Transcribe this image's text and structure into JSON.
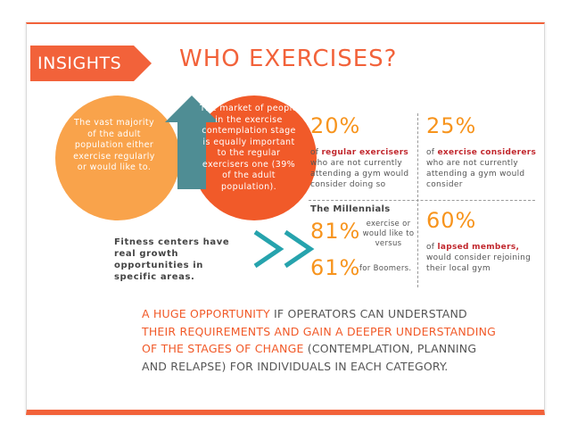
{
  "header": {
    "tag": "INSIGHTS",
    "title": "WHO EXERCISES?"
  },
  "circles": {
    "orange_text": "The vast majority of the adult population either exercise regularly or would like to.",
    "red_text": "The market of people in the exercise contemplation stage is equally important to the regular exercisers one (39% of the adult population)."
  },
  "stats": {
    "regular": {
      "pct": "20%",
      "bold": "regular exercisers",
      "pre": "of ",
      "post": " who are not currently attending a gym would consider doing so"
    },
    "considerers": {
      "pct": "25%",
      "pre": "of ",
      "bold": "exercise considerers",
      "post": " who are not currently attending a gym would consider"
    },
    "millennials": {
      "label": "The Millennials",
      "pct1": "81%",
      "desc1": "exercise or would like to versus",
      "pct2": "61%",
      "desc2": "for Boomers."
    },
    "lapsed": {
      "pct": "60%",
      "pre": "of ",
      "bold": "lapsed members,",
      "post": " would consider rejoining their local gym"
    }
  },
  "fitness_text": "Fitness centers have real growth opportunities in specific areas.",
  "bottom": {
    "p1": "A HUGE OPPORTUNITY",
    "p2": " IF OPERATORS CAN UNDERSTAND ",
    "p3": "THEIR REQUIREMENTS AND GAIN A DEEPER UNDERSTANDING OF THE STAGES OF CHANGE",
    "p4": " (CONTEMPLATION, PLANNING AND RELAPSE) FOR INDIVIDUALS IN EACH CATEGORY."
  },
  "colors": {
    "accent": "#f2623a",
    "orange": "#f9a34b",
    "red": "#f15a29",
    "teal": "#4f8d94",
    "chevron": "#26a3ad"
  }
}
